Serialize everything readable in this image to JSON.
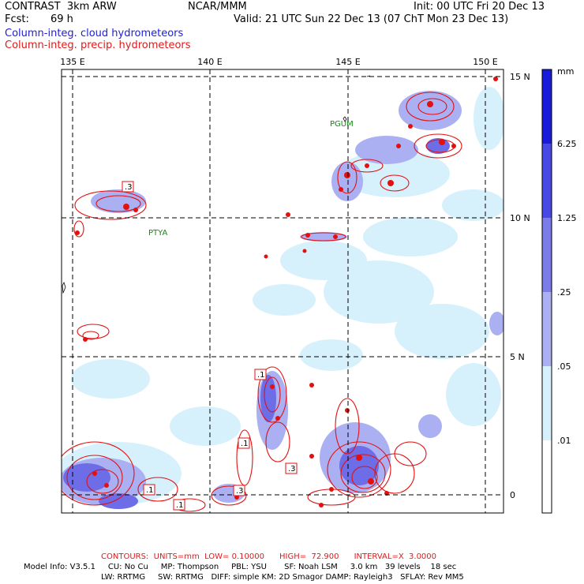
{
  "header": {
    "title": "CONTRAST  3km ARW",
    "fcst_label": "Fcst:",
    "fcst_value": "69 h",
    "org": "NCAR/MMM",
    "init": "Init: 00 UTC Fri 20 Dec 13",
    "valid": "Valid: 21 UTC Sun 22 Dec 13 (07 ChT Mon 23 Dec 13)",
    "field1": "Column-integ. cloud hydrometeors",
    "field2": "Column-integ. precip. hydrometeors"
  },
  "map": {
    "lon_labels": [
      "135 E",
      "140 E",
      "145 E",
      "150 E"
    ],
    "lat_labels": [
      "15 N",
      "10 N",
      "5 N",
      "0"
    ],
    "stations": [
      "PGUM",
      "PTYA"
    ],
    "contour_labels": [
      ".3",
      ".1",
      ".1",
      ".3",
      ".1",
      ".1",
      ".3",
      ".1"
    ]
  },
  "colorbar": {
    "unit": "mm",
    "levels": [
      "6.25",
      "1.25",
      ".25",
      ".05",
      ".01"
    ],
    "colors": [
      "#1a1adb",
      "#4848e6",
      "#7b7bea",
      "#aab0f2",
      "#d6f1fb",
      "#ffffff"
    ]
  },
  "footer": {
    "contours": "CONTOURS:  UNITS=mm  LOW= 0.10000      HIGH=  72.900      INTERVAL=X  3.0000",
    "model1": "Model Info: V3.5.1     CU: No Cu     MP: Thompson     PBL: YSU       SF: Noah LSM     3.0 km   39 levels    18 sec",
    "model2": "LW: RRTMG     SW: RRTMG   DIFF: simple KM: 2D Smagor DAMP: Rayleigh3   SFLAY: Rev MM5"
  },
  "colors": {
    "cloud": "#2b2bd9",
    "precip": "#e31010"
  }
}
